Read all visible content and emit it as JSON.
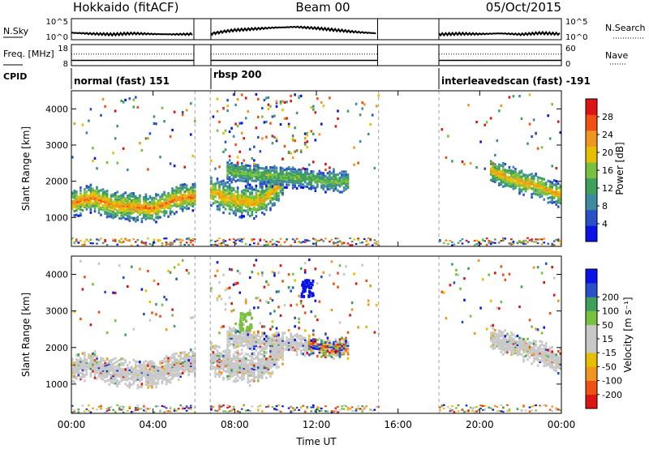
{
  "header": {
    "radar": "Hokkaido (fitACF)",
    "beam": "Beam 00",
    "date": "05/Oct/2015"
  },
  "colors": {
    "power": [
      "#0a14e6",
      "#2a50c8",
      "#3e8aa0",
      "#3ea05a",
      "#78c040",
      "#e6c000",
      "#f0961e",
      "#f05014",
      "#dc1414"
    ],
    "velocity": [
      "#dc1414",
      "#f05014",
      "#f0961e",
      "#e6c000",
      "#c8c8c8",
      "#c8c8c8",
      "#78c040",
      "#3ea05a",
      "#2a50c8",
      "#0a14e6"
    ],
    "ground_scatter": "#c8c8c8"
  },
  "chart_data": [
    {
      "type": "line",
      "panel": "noise",
      "ylabel_left": "N.Sky",
      "ylabel_right": "N.Search",
      "yticks_left": [
        "10^5",
        "10^0"
      ],
      "yticks_right": [
        "10^5",
        "10^0"
      ],
      "segments": [
        {
          "x": [
            "00:00",
            "01:00",
            "02:00",
            "03:00",
            "04:00",
            "05:00",
            "06:00"
          ],
          "y": [
            1.4,
            1.1,
            0.9,
            1.2,
            1.0,
            0.9,
            1.0
          ]
        },
        {
          "x": [
            "06:50",
            "07:30",
            "08:00",
            "09:00",
            "10:00",
            "11:00",
            "12:00",
            "13:00",
            "14:00",
            "15:00"
          ],
          "y": [
            1.1,
            1.8,
            2.2,
            2.6,
            3.0,
            3.2,
            2.8,
            2.2,
            1.6,
            1.2
          ]
        },
        {
          "x": [
            "18:00",
            "19:00",
            "20:00",
            "21:00",
            "22:00",
            "23:00",
            "24:00"
          ],
          "y": [
            0.9,
            1.1,
            1.0,
            1.2,
            0.9,
            1.3,
            1.0
          ]
        }
      ],
      "ylim": [
        0,
        5
      ]
    },
    {
      "type": "line",
      "panel": "frequency",
      "ylabel_left": "Freq. [MHz]",
      "ylabel_right": "Nave",
      "yticks_left": [
        "18",
        "8"
      ],
      "yticks_right": [
        "60",
        "0"
      ],
      "segments_x": [
        [
          "00:00",
          "06:00"
        ],
        [
          "06:50",
          "15:00"
        ],
        [
          "18:00",
          "24:00"
        ]
      ],
      "freq": 10.5,
      "nave": 33,
      "ylim_left": [
        8,
        18
      ],
      "ylim_right": [
        0,
        60
      ]
    },
    {
      "type": "table",
      "panel": "cpid",
      "label": "CPID",
      "segments": [
        {
          "start": "00:00",
          "end": "06:00",
          "label": "normal (fast) 151"
        },
        {
          "start": "06:50",
          "end": "15:00",
          "label": "rbsp 200"
        },
        {
          "start": "18:00",
          "end": "24:00",
          "label": "interleavedscan (fast) -191"
        }
      ]
    },
    {
      "type": "heatmap",
      "panel": "power",
      "ylabel": "Slant Range [km]",
      "yticks": [
        1000,
        2000,
        3000,
        4000
      ],
      "ylim": [
        200,
        4500
      ],
      "xlim": [
        0,
        24
      ],
      "colorbar": {
        "label": "Power [dB]",
        "ticks": [
          4,
          8,
          12,
          16,
          20,
          24,
          28
        ],
        "range": [
          0,
          32
        ]
      },
      "bands": [
        {
          "t0": 0.0,
          "t1": 6.0,
          "r_center": [
            1400,
            1550,
            1350,
            1300,
            1250,
            1500,
            1600
          ],
          "width": 300,
          "db": 24,
          "spread": 400
        },
        {
          "t0": 6.8,
          "t1": 10.3,
          "r_center": [
            1700,
            1600,
            1500,
            1450,
            1400,
            1500,
            1700,
            2000
          ],
          "width": 350,
          "db": 22,
          "spread": 450
        },
        {
          "t0": 7.5,
          "t1": 13.5,
          "r_center": [
            2300,
            2200,
            2150,
            2100,
            2000,
            2000
          ],
          "width": 250,
          "db": 16,
          "spread": 300
        },
        {
          "t0": 20.5,
          "t1": 24.0,
          "r_center": [
            2300,
            2100,
            1950,
            1800,
            1600
          ],
          "width": 250,
          "db": 22,
          "spread": 350
        }
      ]
    },
    {
      "type": "heatmap",
      "panel": "velocity",
      "ylabel": "Slant Range [km]",
      "yticks": [
        1000,
        2000,
        3000,
        4000
      ],
      "ylim": [
        200,
        4500
      ],
      "xlim": [
        0,
        24
      ],
      "xticks": [
        "00:00",
        "04:00",
        "08:00",
        "12:00",
        "16:00",
        "20:00",
        "00:00"
      ],
      "xlabel": "Time UT",
      "colorbar": {
        "label": "Velocity [m s⁻¹]",
        "ticks": [
          "-200",
          "-100",
          "-50",
          "-15",
          "15",
          "50",
          "100",
          "200"
        ],
        "range": [
          -250,
          250
        ]
      },
      "features": [
        {
          "t0": 0.0,
          "t1": 6.0,
          "kind": "ground"
        },
        {
          "t0": 6.8,
          "t1": 11.5,
          "kind": "ground"
        },
        {
          "t0": 20.5,
          "t1": 24.0,
          "kind": "ground"
        },
        {
          "t": 11.5,
          "r": 3600,
          "vel": 220
        },
        {
          "t": 8.5,
          "r": 2700,
          "vel": 60
        }
      ]
    }
  ]
}
